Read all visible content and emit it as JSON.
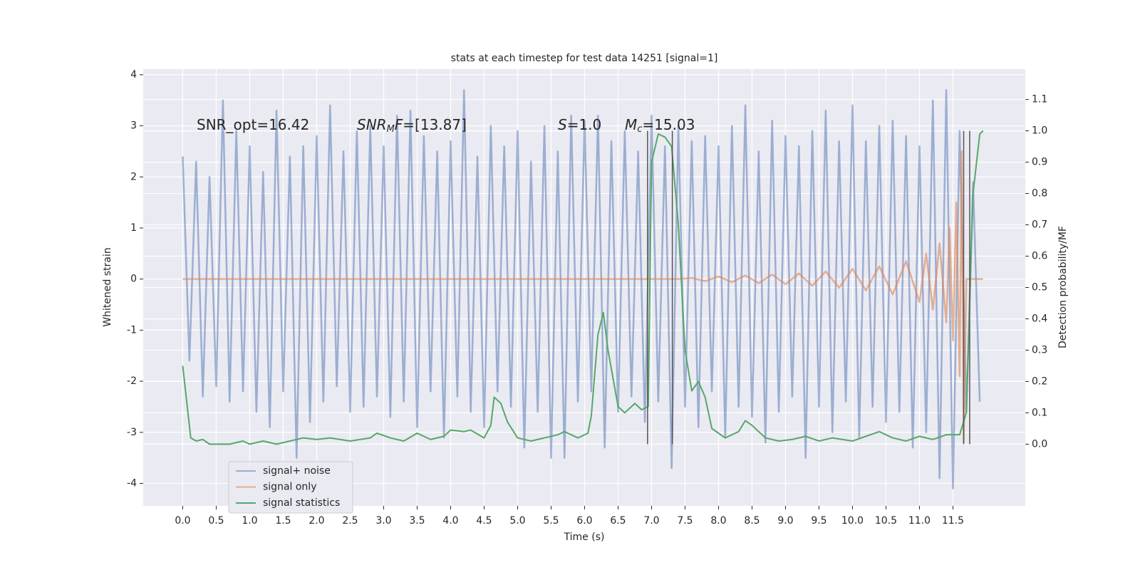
{
  "chart_data": {
    "type": "line",
    "title": "stats at each timestep for test data 14251 [signal=1]",
    "xlabel": "Time (s)",
    "ylabel": "Whitened strain",
    "y2label": "Detection probability/MF",
    "xlim": [
      -0.59,
      12.58
    ],
    "ylim": [
      -4.44,
      4.11
    ],
    "y2lim": [
      -0.197,
      1.197
    ],
    "xticks": [
      {
        "value": 0,
        "label": "0.0"
      },
      0.5,
      {
        "value": 1,
        "label": "1.0"
      },
      1.5,
      {
        "value": 2,
        "label": "2.0"
      },
      2.5,
      {
        "value": 3,
        "label": "3.0"
      },
      3.5,
      {
        "value": 4,
        "label": "4.0"
      },
      4.5,
      {
        "value": 5,
        "label": "5.0"
      },
      5.5,
      {
        "value": 6,
        "label": "6.0"
      },
      6.5,
      {
        "value": 7,
        "label": "7.0"
      },
      7.5,
      {
        "value": 8,
        "label": "8.0"
      },
      8.5,
      {
        "value": 9,
        "label": "9.0"
      },
      9.5,
      {
        "value": 10,
        "label": "10.0"
      },
      10.5,
      {
        "value": 11,
        "label": "11.0"
      },
      11.5
    ],
    "yticks": [
      -4,
      -3,
      -2,
      -1,
      0,
      1,
      2,
      3,
      4
    ],
    "y2ticks": [
      {
        "value": 0,
        "label": "0.0"
      },
      0.1,
      0.2,
      0.3,
      0.4,
      0.5,
      0.6,
      0.7,
      0.8,
      0.9,
      {
        "value": 1,
        "label": "1.0"
      },
      1.1
    ],
    "grid": true,
    "legend": "lower left",
    "annotations": [
      [
        {
          "text": "SNR_opt=16.42",
          "style": "normal"
        }
      ],
      [
        {
          "text": "SNR",
          "style": "italic"
        },
        {
          "text": "M",
          "style": "sub"
        },
        {
          "text": "F",
          "style": "italic"
        },
        {
          "text": "=[13.87]",
          "style": "normal"
        }
      ],
      [
        {
          "text": "S",
          "style": "italic"
        },
        {
          "text": "=1.0",
          "style": "normal"
        }
      ],
      [
        {
          "text": "M",
          "style": "italic"
        },
        {
          "text": "c",
          "style": "sub"
        },
        {
          "text": "=15.03",
          "style": "normal"
        }
      ]
    ],
    "vlines": {
      "x": [
        6.94,
        7.31,
        11.66,
        11.75
      ],
      "y2": [
        0,
        1.0
      ],
      "color": "#555555"
    },
    "series": [
      {
        "name": "signal+ noise",
        "color": "#4c72b0",
        "opacity": 0.5,
        "axis": "y",
        "x": [
          0.0,
          0.1,
          0.2,
          0.3,
          0.4,
          0.5,
          0.6,
          0.7,
          0.8,
          0.9,
          1.0,
          1.1,
          1.2,
          1.3,
          1.4,
          1.5,
          1.6,
          1.7,
          1.8,
          1.9,
          2.0,
          2.1,
          2.2,
          2.3,
          2.4,
          2.5,
          2.6,
          2.7,
          2.8,
          2.9,
          3.0,
          3.1,
          3.2,
          3.3,
          3.4,
          3.5,
          3.6,
          3.7,
          3.8,
          3.9,
          4.0,
          4.1,
          4.2,
          4.3,
          4.4,
          4.5,
          4.6,
          4.7,
          4.8,
          4.9,
          5.0,
          5.1,
          5.2,
          5.3,
          5.4,
          5.5,
          5.6,
          5.7,
          5.8,
          5.9,
          6.0,
          6.1,
          6.2,
          6.3,
          6.4,
          6.5,
          6.6,
          6.7,
          6.8,
          6.9,
          7.0,
          7.1,
          7.2,
          7.3,
          7.4,
          7.5,
          7.6,
          7.7,
          7.8,
          7.9,
          8.0,
          8.1,
          8.2,
          8.3,
          8.4,
          8.5,
          8.6,
          8.7,
          8.8,
          8.9,
          9.0,
          9.1,
          9.2,
          9.3,
          9.4,
          9.5,
          9.6,
          9.7,
          9.8,
          9.9,
          10.0,
          10.1,
          10.2,
          10.3,
          10.4,
          10.5,
          10.6,
          10.7,
          10.8,
          10.9,
          11.0,
          11.1,
          11.2,
          11.3,
          11.4,
          11.5,
          11.6,
          11.7,
          11.8,
          11.9
        ],
        "values": [
          2.4,
          -1.6,
          2.3,
          -2.3,
          2.0,
          -2.1,
          3.5,
          -2.4,
          2.9,
          -2.2,
          2.6,
          -2.6,
          2.1,
          -2.9,
          3.3,
          -2.2,
          2.4,
          -3.5,
          2.6,
          -2.8,
          2.8,
          -2.4,
          3.4,
          -2.1,
          2.5,
          -2.6,
          2.9,
          -2.5,
          3.0,
          -2.3,
          2.6,
          -2.7,
          3.2,
          -2.4,
          3.3,
          -2.9,
          2.8,
          -2.2,
          2.5,
          -3.1,
          2.7,
          -2.3,
          3.7,
          -2.6,
          2.4,
          -2.9,
          3.0,
          -2.2,
          2.6,
          -2.5,
          2.9,
          -3.3,
          2.3,
          -2.6,
          3.0,
          -3.5,
          2.5,
          -3.5,
          3.2,
          -2.4,
          3.1,
          -2.2,
          3.2,
          -3.3,
          2.7,
          -2.6,
          2.9,
          -2.3,
          2.5,
          -2.8,
          3.2,
          -2.4,
          2.6,
          -3.7,
          3.0,
          -2.5,
          2.7,
          -2.9,
          2.8,
          -2.2,
          2.6,
          -3.1,
          3.0,
          -2.5,
          3.4,
          -2.7,
          2.5,
          -3.2,
          3.1,
          -2.6,
          2.8,
          -2.3,
          2.6,
          -3.5,
          2.9,
          -2.5,
          3.3,
          -3.0,
          2.7,
          -2.4,
          3.4,
          -3.1,
          2.7,
          -2.5,
          3.0,
          -2.8,
          3.1,
          -2.6,
          2.8,
          -3.3,
          2.6,
          -3.0,
          3.5,
          -3.9,
          3.7,
          -4.1,
          2.9,
          -2.6,
          1.9,
          -2.4
        ]
      },
      {
        "name": "signal only",
        "color": "#dd8452",
        "opacity": 0.6,
        "axis": "y",
        "x": [
          0,
          7.4,
          7.6,
          7.8,
          8.0,
          8.2,
          8.4,
          8.6,
          8.8,
          9.0,
          9.2,
          9.4,
          9.6,
          9.8,
          10.0,
          10.2,
          10.4,
          10.6,
          10.8,
          11.0,
          11.1,
          11.2,
          11.3,
          11.4,
          11.45,
          11.5,
          11.55,
          11.6,
          11.63,
          11.66,
          11.7,
          11.95
        ],
        "values": [
          0,
          0,
          0.02,
          -0.04,
          0.05,
          -0.06,
          0.07,
          -0.08,
          0.09,
          -0.1,
          0.11,
          -0.13,
          0.15,
          -0.17,
          0.2,
          -0.22,
          0.25,
          -0.3,
          0.35,
          -0.45,
          0.5,
          -0.6,
          0.7,
          -0.85,
          1.0,
          -1.2,
          1.5,
          -1.9,
          2.5,
          -3.2,
          0,
          0
        ]
      },
      {
        "name": "signal statistics",
        "color": "#55a868",
        "opacity": 1,
        "axis": "y2",
        "x": [
          0.0,
          0.12,
          0.2,
          0.3,
          0.4,
          0.5,
          0.7,
          0.9,
          1.0,
          1.2,
          1.4,
          1.6,
          1.8,
          2.0,
          2.2,
          2.5,
          2.8,
          2.9,
          3.1,
          3.3,
          3.5,
          3.7,
          3.9,
          4.0,
          4.2,
          4.3,
          4.5,
          4.6,
          4.65,
          4.75,
          4.85,
          5.0,
          5.2,
          5.4,
          5.6,
          5.7,
          5.9,
          6.05,
          6.1,
          6.2,
          6.28,
          6.35,
          6.5,
          6.6,
          6.75,
          6.85,
          6.95,
          7.0,
          7.1,
          7.2,
          7.3,
          7.4,
          7.5,
          7.6,
          7.7,
          7.8,
          7.9,
          8.1,
          8.3,
          8.4,
          8.5,
          8.7,
          8.9,
          9.1,
          9.3,
          9.5,
          9.7,
          10.0,
          10.2,
          10.4,
          10.6,
          10.8,
          11.0,
          11.2,
          11.4,
          11.6,
          11.7,
          11.8,
          11.9,
          11.95
        ],
        "values": [
          0.25,
          0.02,
          0.01,
          0.015,
          0.0,
          0.0,
          0.0,
          0.01,
          0.0,
          0.01,
          0.0,
          0.01,
          0.02,
          0.015,
          0.02,
          0.01,
          0.02,
          0.035,
          0.02,
          0.01,
          0.035,
          0.015,
          0.025,
          0.045,
          0.04,
          0.045,
          0.02,
          0.06,
          0.15,
          0.13,
          0.07,
          0.02,
          0.01,
          0.02,
          0.03,
          0.04,
          0.02,
          0.035,
          0.09,
          0.35,
          0.42,
          0.3,
          0.12,
          0.1,
          0.13,
          0.11,
          0.12,
          0.9,
          0.99,
          0.98,
          0.95,
          0.7,
          0.3,
          0.17,
          0.2,
          0.15,
          0.05,
          0.02,
          0.04,
          0.075,
          0.06,
          0.02,
          0.01,
          0.015,
          0.025,
          0.01,
          0.02,
          0.01,
          0.025,
          0.04,
          0.02,
          0.01,
          0.025,
          0.015,
          0.03,
          0.03,
          0.1,
          0.8,
          0.99,
          1.0
        ]
      }
    ]
  }
}
